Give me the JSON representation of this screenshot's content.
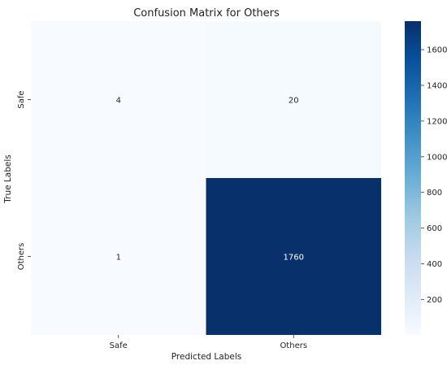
{
  "chart_data": {
    "type": "heatmap",
    "title": "Confusion Matrix for Others",
    "xlabel": "Predicted Labels",
    "ylabel": "True Labels",
    "x_categories": [
      "Safe",
      "Others"
    ],
    "y_categories": [
      "Safe",
      "Others"
    ],
    "values": [
      [
        4,
        20
      ],
      [
        1,
        1760
      ]
    ],
    "colormap": "Blues",
    "colorbar": {
      "range": [
        1,
        1760
      ],
      "ticks": [
        200,
        400,
        600,
        800,
        1000,
        1200,
        1400,
        1600
      ]
    },
    "colors": {
      "low": "#f7fbff",
      "high": "#08306b"
    }
  }
}
